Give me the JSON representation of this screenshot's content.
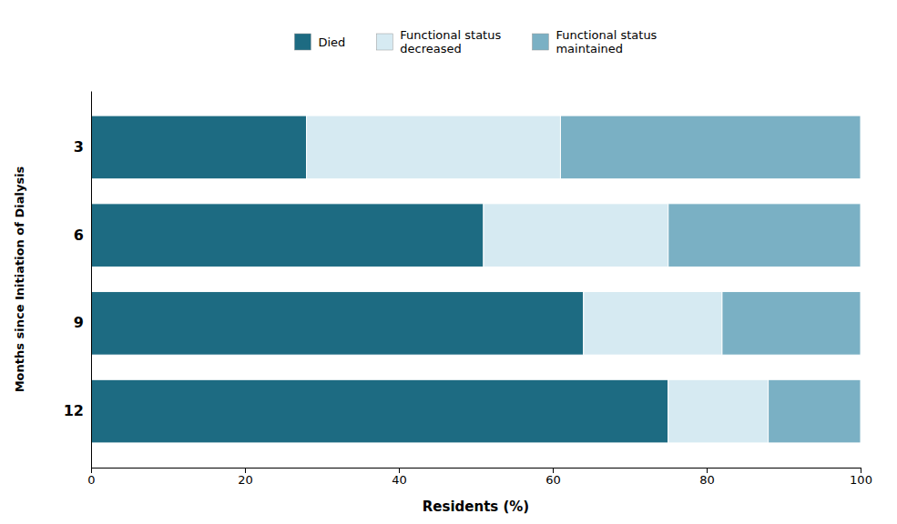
{
  "chart_data": {
    "type": "bar",
    "orientation": "horizontal",
    "stacked": true,
    "categories": [
      "3",
      "6",
      "9",
      "12"
    ],
    "series": [
      {
        "name": "Died",
        "color": "#1d6b82",
        "values": [
          28,
          51,
          64,
          75
        ]
      },
      {
        "name": "Functional status\ndecreased",
        "color": "#d6eaf2",
        "values": [
          33,
          24,
          18,
          13
        ]
      },
      {
        "name": "Functional status\nmaintained",
        "color": "#7ab0c4",
        "values": [
          39,
          25,
          18,
          12
        ]
      }
    ],
    "xlabel": "Residents (%)",
    "ylabel": "Months since Initiation of Dialysis",
    "xlim": [
      0,
      100
    ],
    "xticks": [
      0,
      20,
      40,
      60,
      80,
      100
    ],
    "legend": "top",
    "grid": false
  }
}
